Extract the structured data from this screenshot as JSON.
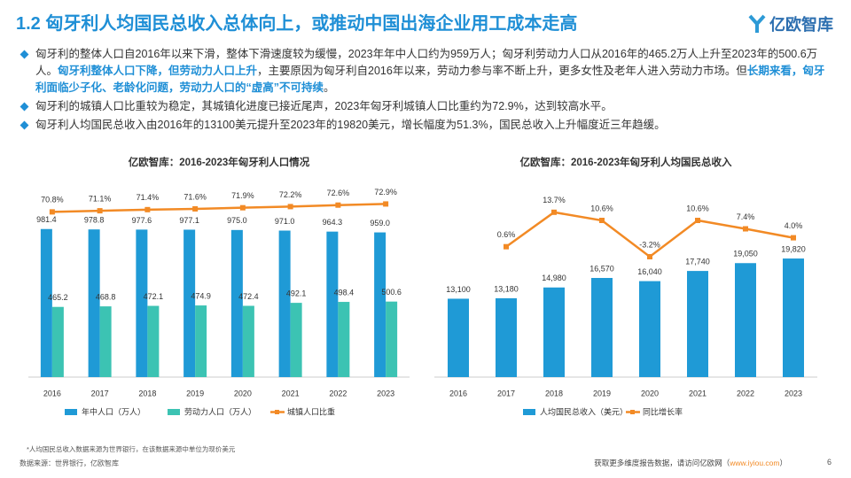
{
  "header": {
    "title": "1.2 匈牙利人均国民总收入总体向上，或推动中国出海企业用工成本走高",
    "logo": "亿欧智库"
  },
  "bullets": [
    [
      {
        "text": "匈牙利的整体人口自2016年以来下滑，整体下滑速度较为缓慢，2023年年中人口约为959万人；匈牙利劳动力人口从2016年的465.2万人上升至2023年的500.6万人。",
        "emphasis": false
      },
      {
        "text": "匈牙利整体人口下降，但劳动力人口上升",
        "emphasis": true
      },
      {
        "text": "，主要原因为匈牙利自2016年以来，劳动力参与率不断上升，更多女性及老年人进入劳动力市场。但",
        "emphasis": false
      },
      {
        "text": "长期来看，匈牙利面临少子化、老龄化问题，劳动力人口的“虚高”不可持续",
        "emphasis": true
      },
      {
        "text": "。",
        "emphasis": false
      }
    ],
    [
      {
        "text": "匈牙利的城镇人口比重较为稳定，其城镇化进度已接近尾声，2023年匈牙利城镇人口比重约为72.9%，达到较高水平。",
        "emphasis": false
      }
    ],
    [
      {
        "text": "匈牙利人均国民总收入由2016年的13100美元提升至2023年的19820美元，增长幅度为51.3%，国民总收入上升幅度近三年趋缓。",
        "emphasis": false
      }
    ]
  ],
  "chart_data": [
    {
      "type": "combo",
      "title": "亿欧智库：2016-2023年匈牙利人口情况",
      "categories": [
        "2016",
        "2017",
        "2018",
        "2019",
        "2020",
        "2021",
        "2022",
        "2023"
      ],
      "ylim": [
        0,
        1150
      ],
      "y2lim": [
        27,
        73
      ],
      "series": [
        {
          "name": "年中人口（万人）",
          "type": "bar",
          "color": "#1f9ad6",
          "values": [
            981.4,
            978.8,
            977.6,
            977.1,
            975.0,
            971.0,
            964.3,
            959.0
          ],
          "value_labels": [
            "981.4",
            "978.8",
            "977.6",
            "977.1",
            "975.0",
            "971.0",
            "964.3",
            "959.0"
          ]
        },
        {
          "name": "劳动力人口（万人）",
          "type": "bar",
          "color": "#3cc3b3",
          "values": [
            465.2,
            468.8,
            472.1,
            474.9,
            472.4,
            492.1,
            498.4,
            500.6
          ]
        },
        {
          "name": "城镇人口比重",
          "type": "line",
          "axis": "y2",
          "color": "#f28a25",
          "values": [
            70.8,
            71.1,
            71.4,
            71.6,
            71.9,
            72.2,
            72.6,
            72.9
          ],
          "value_labels": [
            "70.8%",
            "71.1%",
            "71.4%",
            "71.6%",
            "71.9%",
            "72.2%",
            "72.6%",
            "72.9%"
          ]
        }
      ]
    },
    {
      "type": "combo",
      "title": "亿欧智库：2016-2023年匈牙利人均国民总收入",
      "categories": [
        "2016",
        "2017",
        "2018",
        "2019",
        "2020",
        "2021",
        "2022",
        "2023"
      ],
      "ylim": [
        0,
        29000
      ],
      "y2lim": [
        -49,
        17
      ],
      "series": [
        {
          "name": "人均国民总收入（美元）",
          "type": "bar",
          "color": "#1f9ad6",
          "values": [
            13100,
            13180,
            14980,
            16570,
            16040,
            17740,
            19050,
            19820
          ],
          "value_labels": [
            "13,100",
            "13,180",
            "14,980",
            "16,570",
            "16,040",
            "17,740",
            "19,050",
            "19,820"
          ]
        },
        {
          "name": "同比增长率",
          "type": "line",
          "axis": "y2",
          "color": "#f28a25",
          "values": [
            null,
            0.6,
            13.7,
            10.6,
            -3.2,
            10.6,
            7.4,
            4.0
          ],
          "value_labels": [
            null,
            "0.6%",
            "13.7%",
            "10.6%",
            "-3.2%",
            "10.6%",
            "7.4%",
            "4.0%"
          ]
        }
      ]
    }
  ],
  "footer": {
    "note": "*人均国民总收入数据来源为世界银行，在该数据来源中单位为现价美元",
    "source": "数据来源：世界银行，亿欧智库",
    "cta": [
      {
        "text": "获取更多维度报告数据，请访问亿欧网（",
        "emphasis": false
      },
      {
        "text": "www.iyiou.com",
        "emphasis": true
      },
      {
        "text": "）",
        "emphasis": false
      }
    ],
    "page": "6"
  }
}
